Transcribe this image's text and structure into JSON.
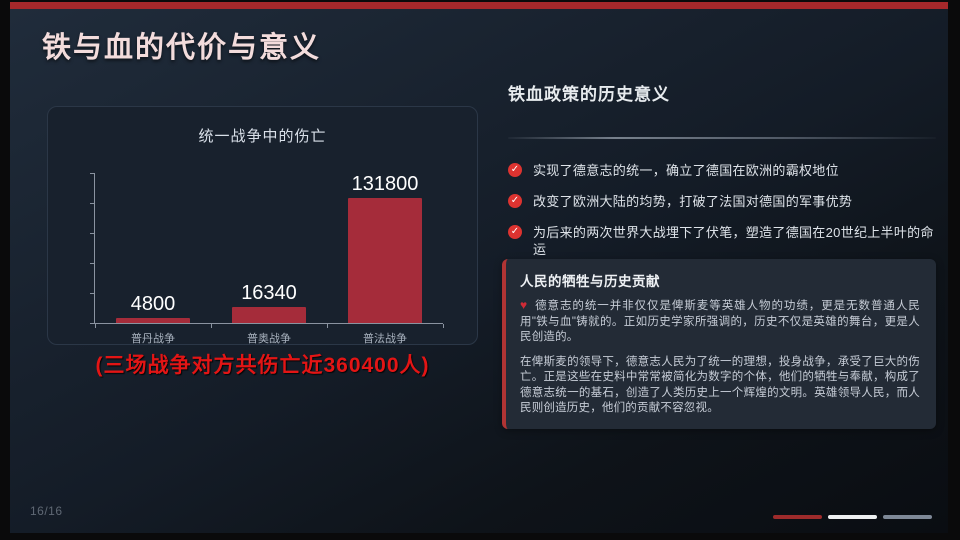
{
  "slide": {
    "title": "铁与血的代价与意义"
  },
  "chart_data": {
    "type": "bar",
    "title": "统一战争中的伤亡",
    "categories": [
      "普丹战争",
      "普奥战争",
      "普法战争"
    ],
    "values": [
      4800,
      16340,
      131800
    ],
    "bar_color": "#a52c3a",
    "xlabel": "",
    "ylabel": "",
    "ylim": [
      0,
      150000
    ],
    "grid": false,
    "legend": false,
    "value_labels": true
  },
  "chart_caption": "(三场战争对方共伤亡近360400人)",
  "right_panel": {
    "heading": "铁血政策的历史意义",
    "check_glyph": "✓",
    "bullets": [
      "实现了德意志的统一，确立了德国在欧洲的霸权地位",
      "改变了欧洲大陆的均势，打破了法国对德国的军事优势",
      "为后来的两次世界大战埋下了伏笔，塑造了德国在20世纪上半叶的命运"
    ],
    "info_card": {
      "title": "人民的牺牲与历史贡献",
      "heart_glyph": "♥",
      "paragraph1": "德意志的统一并非仅仅是俾斯麦等英雄人物的功绩，更是无数普通人民用\"铁与血\"铸就的。正如历史学家所强调的，历史不仅是英雄的舞台，更是人民创造的。",
      "paragraph2": "在俾斯麦的领导下，德意志人民为了统一的理想，投身战争，承受了巨大的伤亡。正是这些在史料中常常被简化为数字的个体，他们的牺牲与奉献，构成了德意志统一的基石，创造了人类历史上一个辉煌的文明。英雄领导人民，而人民则创造历史，他们的贡献不容忽视。"
    }
  },
  "footer": {
    "page_number": "16/16",
    "nav_bars": [
      {
        "name": "nav-bar-current",
        "color": "#9e2b2b"
      },
      {
        "name": "nav-bar-white",
        "color": "#eef0f2"
      },
      {
        "name": "nav-bar-gray",
        "color": "#7e8897"
      }
    ]
  },
  "colors": {
    "accent_red": "#a5282b",
    "bar_red": "#a52c3a",
    "caption_red": "#e31515",
    "bullet_icon_red": "#dd3330"
  }
}
